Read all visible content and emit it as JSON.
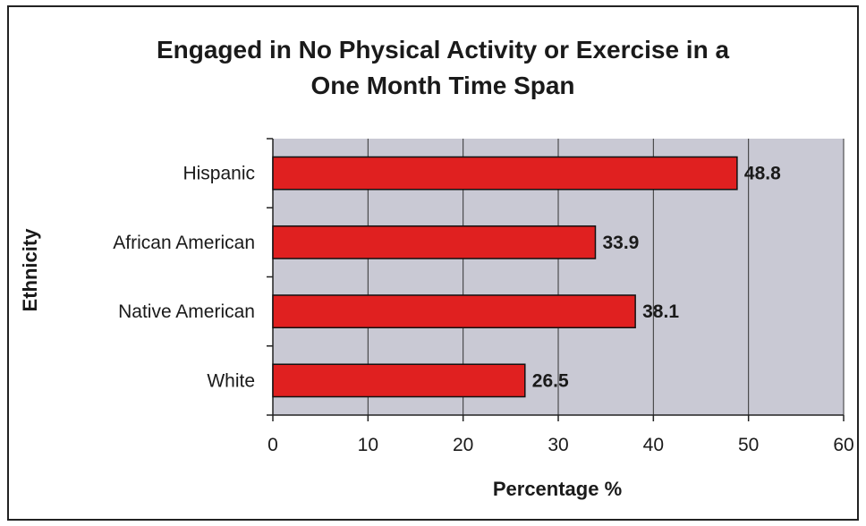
{
  "chart_data": {
    "type": "bar",
    "orientation": "horizontal",
    "title_line1": "Engaged in No Physical Activity or Exercise in a",
    "title_line2": "One Month Time Span",
    "xlabel": "Percentage %",
    "ylabel": "Ethnicity",
    "categories": [
      "Hispanic",
      "African American",
      "Native American",
      "White"
    ],
    "values": [
      48.8,
      33.9,
      38.1,
      26.5
    ],
    "value_labels": [
      "48.8",
      "33.9",
      "38.1",
      "26.5"
    ],
    "xlim": [
      0,
      60
    ],
    "xticks": [
      0,
      10,
      20,
      30,
      40,
      50,
      60
    ],
    "xtick_labels": [
      "0",
      "10",
      "20",
      "30",
      "40",
      "50",
      "60"
    ],
    "grid": "vertical",
    "colors": {
      "bar": "#e02020",
      "bar_border": "#111111",
      "plot_background": "#c9c9d4",
      "gridline": "#333333"
    }
  }
}
